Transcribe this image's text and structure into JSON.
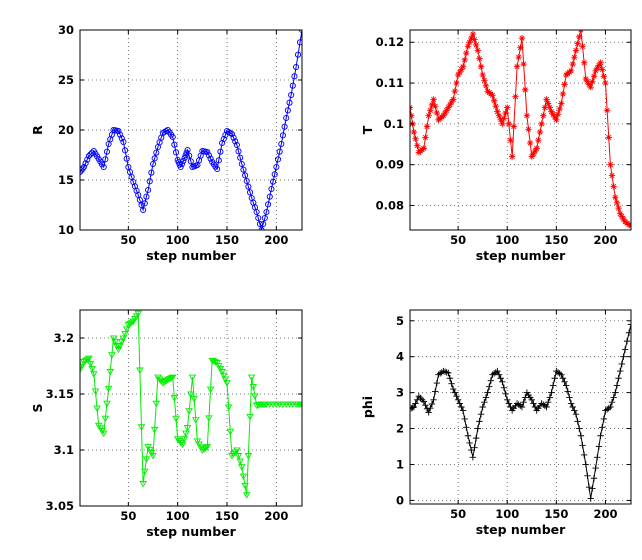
{
  "chart_data": [
    {
      "type": "line",
      "xlabel": "step number",
      "ylabel": "R",
      "xlim": [
        1,
        226
      ],
      "ylim": [
        10,
        30
      ],
      "xticks": [
        50,
        100,
        150,
        200
      ],
      "yticks": [
        10,
        15,
        20,
        25,
        30
      ],
      "grid": true,
      "color": "#0000ff",
      "marker": "circle",
      "series": [
        {
          "x": [
            1,
            5,
            10,
            15,
            20,
            25,
            30,
            35,
            40,
            45,
            50,
            55,
            60,
            65,
            70,
            75,
            80,
            85,
            90,
            95,
            100,
            103,
            107,
            110,
            115,
            120,
            125,
            130,
            135,
            140,
            145,
            150,
            155,
            160,
            165,
            170,
            175,
            180,
            185,
            190,
            195,
            200,
            205,
            210,
            215,
            220,
            226
          ],
          "values": [
            15.8,
            16.3,
            17.4,
            17.9,
            17.1,
            16.3,
            18.6,
            20.0,
            19.9,
            18.8,
            16.3,
            14.8,
            13.5,
            12.0,
            14.0,
            16.6,
            18.3,
            19.7,
            20.0,
            19.3,
            17.0,
            16.3,
            17.2,
            18.0,
            16.3,
            16.5,
            17.9,
            17.8,
            16.8,
            16.1,
            18.7,
            19.9,
            19.6,
            18.5,
            16.6,
            14.9,
            13.2,
            11.8,
            10.0,
            11.8,
            14.1,
            16.3,
            18.6,
            21.2,
            23.5,
            26.3,
            30.0
          ]
        }
      ]
    },
    {
      "type": "line",
      "xlabel": "step number",
      "ylabel": "T",
      "xlim": [
        1,
        226
      ],
      "ylim": [
        0.074,
        0.123
      ],
      "xticks": [
        50,
        100,
        150,
        200
      ],
      "yticks": [
        0.08,
        0.09,
        0.1,
        0.11,
        0.12
      ],
      "grid": true,
      "color": "#ff0000",
      "marker": "star",
      "series": [
        {
          "x": [
            1,
            5,
            10,
            15,
            20,
            25,
            30,
            35,
            40,
            45,
            50,
            55,
            60,
            65,
            70,
            75,
            80,
            85,
            90,
            95,
            100,
            105,
            110,
            115,
            120,
            125,
            130,
            135,
            140,
            145,
            150,
            155,
            160,
            165,
            170,
            175,
            180,
            185,
            190,
            195,
            200,
            205,
            210,
            215,
            220,
            226
          ],
          "values": [
            0.104,
            0.098,
            0.093,
            0.094,
            0.102,
            0.106,
            0.101,
            0.102,
            0.104,
            0.106,
            0.112,
            0.114,
            0.119,
            0.122,
            0.118,
            0.112,
            0.108,
            0.107,
            0.103,
            0.1,
            0.104,
            0.092,
            0.114,
            0.121,
            0.102,
            0.092,
            0.094,
            0.1,
            0.106,
            0.103,
            0.101,
            0.105,
            0.112,
            0.113,
            0.118,
            0.123,
            0.111,
            0.109,
            0.113,
            0.115,
            0.11,
            0.09,
            0.082,
            0.078,
            0.076,
            0.075
          ]
        }
      ]
    },
    {
      "type": "line",
      "xlabel": "step number",
      "ylabel": "S",
      "xlim": [
        1,
        226
      ],
      "ylim": [
        3.05,
        3.225
      ],
      "xticks": [
        50,
        100,
        150,
        200
      ],
      "yticks": [
        3.05,
        3.1,
        3.15,
        3.2
      ],
      "grid": true,
      "color": "#00ee00",
      "marker": "triangle-down",
      "series": [
        {
          "x": [
            1,
            5,
            10,
            15,
            20,
            25,
            30,
            35,
            40,
            45,
            50,
            55,
            60,
            65,
            70,
            75,
            80,
            85,
            90,
            95,
            100,
            105,
            110,
            115,
            120,
            125,
            130,
            135,
            140,
            145,
            150,
            155,
            160,
            165,
            170,
            175,
            180,
            185,
            190,
            200,
            210,
            220,
            226
          ],
          "values": [
            3.172,
            3.179,
            3.182,
            3.168,
            3.122,
            3.115,
            3.155,
            3.2,
            3.19,
            3.2,
            3.212,
            3.215,
            3.222,
            3.07,
            3.103,
            3.095,
            3.165,
            3.16,
            3.163,
            3.165,
            3.11,
            3.105,
            3.12,
            3.165,
            3.108,
            3.1,
            3.103,
            3.18,
            3.178,
            3.17,
            3.16,
            3.095,
            3.1,
            3.085,
            3.06,
            3.165,
            3.14,
            3.141,
            3.141,
            3.141,
            3.141,
            3.141,
            3.141
          ]
        }
      ]
    },
    {
      "type": "line",
      "xlabel": "step number",
      "ylabel": "phi",
      "xlim": [
        1,
        226
      ],
      "ylim": [
        -0.1,
        5.3
      ],
      "xticks": [
        50,
        100,
        150,
        200
      ],
      "yticks": [
        0,
        1,
        2,
        3,
        4,
        5
      ],
      "grid": true,
      "color": "#000000",
      "marker": "plus",
      "series": [
        {
          "x": [
            1,
            5,
            10,
            15,
            20,
            25,
            30,
            35,
            40,
            45,
            50,
            55,
            60,
            65,
            70,
            75,
            80,
            85,
            90,
            95,
            100,
            105,
            110,
            115,
            120,
            125,
            130,
            135,
            140,
            145,
            150,
            155,
            160,
            165,
            170,
            175,
            180,
            185,
            190,
            195,
            200,
            205,
            210,
            215,
            220,
            226
          ],
          "values": [
            2.55,
            2.6,
            2.9,
            2.75,
            2.45,
            2.8,
            3.5,
            3.6,
            3.55,
            3.1,
            2.8,
            2.5,
            1.8,
            1.2,
            2.0,
            2.6,
            3.0,
            3.5,
            3.6,
            3.3,
            2.8,
            2.5,
            2.7,
            2.6,
            3.0,
            2.8,
            2.5,
            2.7,
            2.6,
            3.0,
            3.6,
            3.5,
            3.2,
            2.7,
            2.4,
            1.8,
            1.0,
            0.05,
            0.9,
            1.8,
            2.5,
            2.6,
            3.0,
            3.6,
            4.2,
            4.9
          ]
        }
      ]
    }
  ]
}
